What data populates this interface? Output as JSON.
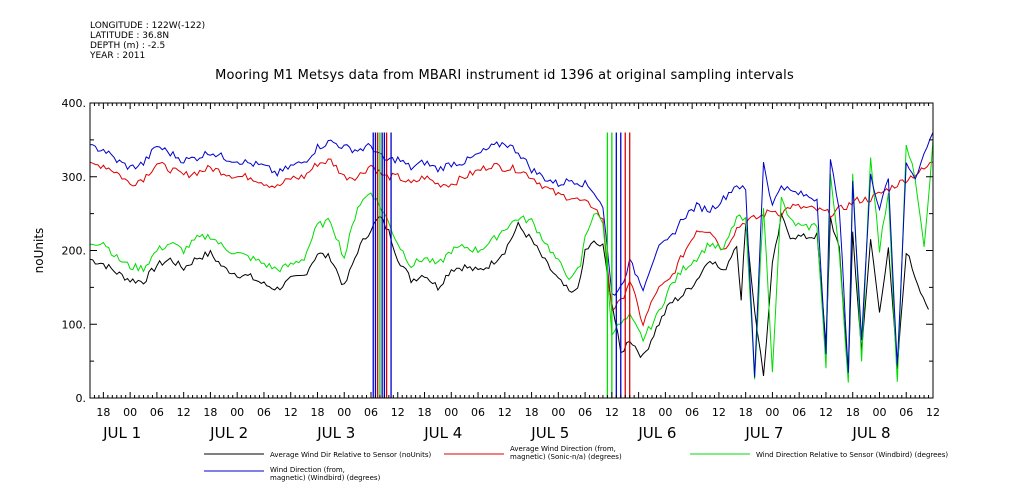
{
  "meta": {
    "longitude": "LONGITUDE : 122W(-122)",
    "latitude": "LATITUDE : 36.8N",
    "depth": "DEPTH (m) : -2.5",
    "year": "YEAR : 2011"
  },
  "chart_data": {
    "type": "line",
    "title": "Mooring M1 Metsys data from MBARI instrument id 1396 at original sampling intervals",
    "ylabel": "noUnits",
    "ylim": [
      0,
      400
    ],
    "yticks": [
      0,
      100,
      200,
      300,
      400
    ],
    "ytick_labels": [
      "0.",
      "100.",
      "200.",
      "300.",
      "400."
    ],
    "xlim_hours": [
      -9,
      180
    ],
    "hour_tick_labels": [
      "18",
      "00",
      "06",
      "12",
      "18",
      "00",
      "06",
      "12",
      "18",
      "00",
      "06",
      "12",
      "18",
      "00",
      "06",
      "12",
      "18",
      "00",
      "06",
      "12",
      "18",
      "00",
      "06",
      "12",
      "18",
      "00",
      "06",
      "12",
      "18",
      "00",
      "06",
      "12"
    ],
    "day_labels": [
      "JUL  1",
      "JUL  2",
      "JUL  3",
      "JUL  4",
      "JUL  5",
      "JUL  6",
      "JUL  7",
      "JUL  8"
    ],
    "series": [
      {
        "name": "Average Wind Dir Relative to Sensor (noUnits)",
        "color": "#000000",
        "points": [
          [
            -9,
            188
          ],
          [
            -6,
            182
          ],
          [
            -3,
            170
          ],
          [
            0,
            160
          ],
          [
            3,
            158
          ],
          [
            6,
            180
          ],
          [
            9,
            188
          ],
          [
            12,
            176
          ],
          [
            15,
            190
          ],
          [
            18,
            196
          ],
          [
            21,
            176
          ],
          [
            24,
            168
          ],
          [
            27,
            164
          ],
          [
            30,
            154
          ],
          [
            33,
            148
          ],
          [
            36,
            160
          ],
          [
            39,
            166
          ],
          [
            42,
            196
          ],
          [
            45,
            190
          ],
          [
            48,
            150
          ],
          [
            51,
            200
          ],
          [
            54,
            230
          ],
          [
            56,
            245
          ],
          [
            58,
            225
          ],
          [
            60,
            190
          ],
          [
            63,
            160
          ],
          [
            66,
            168
          ],
          [
            69,
            150
          ],
          [
            72,
            175
          ],
          [
            75,
            178
          ],
          [
            78,
            172
          ],
          [
            81,
            182
          ],
          [
            84,
            200
          ],
          [
            87,
            234
          ],
          [
            90,
            214
          ],
          [
            93,
            185
          ],
          [
            96,
            160
          ],
          [
            99,
            140
          ],
          [
            101,
            160
          ],
          [
            102,
            200
          ],
          [
            104,
            210
          ],
          [
            106,
            205
          ],
          [
            108,
            130
          ],
          [
            110,
            60
          ],
          [
            112,
            80
          ],
          [
            115,
            55
          ],
          [
            118,
            95
          ],
          [
            121,
            128
          ],
          [
            124,
            140
          ],
          [
            127,
            160
          ],
          [
            130,
            190
          ],
          [
            133,
            170
          ],
          [
            136,
            210
          ],
          [
            137,
            130
          ],
          [
            138,
            240
          ],
          [
            140,
            120
          ],
          [
            142,
            30
          ],
          [
            144,
            180
          ],
          [
            146,
            245
          ],
          [
            148,
            220
          ],
          [
            151,
            218
          ],
          [
            154,
            220
          ],
          [
            156,
            70
          ],
          [
            157,
            245
          ],
          [
            159,
            200
          ],
          [
            161,
            30
          ],
          [
            162,
            225
          ],
          [
            164,
            60
          ],
          [
            166,
            215
          ],
          [
            168,
            120
          ],
          [
            170,
            200
          ],
          [
            172,
            40
          ],
          [
            174,
            200
          ],
          [
            176,
            165
          ],
          [
            179,
            120
          ]
        ]
      },
      {
        "name": "Average Wind Direction (from, magnetic) (Sonic-n/a) (degrees)",
        "color": "#dd0000",
        "points": [
          [
            -9,
            315
          ],
          [
            -6,
            316
          ],
          [
            -3,
            306
          ],
          [
            0,
            290
          ],
          [
            3,
            298
          ],
          [
            6,
            318
          ],
          [
            9,
            310
          ],
          [
            12,
            302
          ],
          [
            15,
            306
          ],
          [
            18,
            312
          ],
          [
            21,
            306
          ],
          [
            24,
            300
          ],
          [
            27,
            300
          ],
          [
            30,
            292
          ],
          [
            33,
            286
          ],
          [
            36,
            298
          ],
          [
            39,
            300
          ],
          [
            42,
            318
          ],
          [
            45,
            322
          ],
          [
            48,
            300
          ],
          [
            51,
            300
          ],
          [
            54,
            316
          ],
          [
            57,
            300
          ],
          [
            60,
            300
          ],
          [
            63,
            290
          ],
          [
            66,
            300
          ],
          [
            69,
            290
          ],
          [
            72,
            290
          ],
          [
            75,
            300
          ],
          [
            78,
            308
          ],
          [
            81,
            316
          ],
          [
            84,
            312
          ],
          [
            87,
            310
          ],
          [
            90,
            300
          ],
          [
            93,
            286
          ],
          [
            96,
            275
          ],
          [
            99,
            272
          ],
          [
            102,
            264
          ],
          [
            104,
            260
          ],
          [
            106,
            240
          ],
          [
            108,
            120
          ],
          [
            110,
            130
          ],
          [
            112,
            160
          ],
          [
            115,
            100
          ],
          [
            118,
            145
          ],
          [
            121,
            160
          ],
          [
            124,
            195
          ],
          [
            127,
            228
          ],
          [
            130,
            228
          ],
          [
            133,
            200
          ],
          [
            136,
            230
          ],
          [
            138,
            240
          ],
          [
            141,
            245
          ],
          [
            144,
            255
          ],
          [
            146,
            250
          ],
          [
            148,
            260
          ],
          [
            151,
            258
          ],
          [
            154,
            255
          ],
          [
            157,
            250
          ],
          [
            160,
            258
          ],
          [
            163,
            268
          ],
          [
            166,
            270
          ],
          [
            169,
            280
          ],
          [
            172,
            290
          ],
          [
            175,
            300
          ],
          [
            178,
            310
          ],
          [
            180,
            320
          ]
        ]
      },
      {
        "name": "Wind Direction Relative to Sensor (Windbird) (degrees)",
        "color": "#00dd00",
        "points": [
          [
            -9,
            210
          ],
          [
            -6,
            212
          ],
          [
            -3,
            190
          ],
          [
            0,
            178
          ],
          [
            3,
            176
          ],
          [
            6,
            200
          ],
          [
            9,
            210
          ],
          [
            12,
            200
          ],
          [
            15,
            216
          ],
          [
            18,
            220
          ],
          [
            21,
            204
          ],
          [
            24,
            196
          ],
          [
            27,
            190
          ],
          [
            30,
            182
          ],
          [
            33,
            174
          ],
          [
            36,
            180
          ],
          [
            39,
            190
          ],
          [
            42,
            234
          ],
          [
            45,
            240
          ],
          [
            48,
            190
          ],
          [
            51,
            260
          ],
          [
            54,
            280
          ],
          [
            57,
            250
          ],
          [
            60,
            210
          ],
          [
            63,
            180
          ],
          [
            66,
            190
          ],
          [
            69,
            180
          ],
          [
            72,
            200
          ],
          [
            75,
            205
          ],
          [
            78,
            200
          ],
          [
            81,
            212
          ],
          [
            84,
            230
          ],
          [
            87,
            244
          ],
          [
            90,
            240
          ],
          [
            93,
            212
          ],
          [
            96,
            184
          ],
          [
            99,
            160
          ],
          [
            101,
            180
          ],
          [
            102,
            220
          ],
          [
            104,
            250
          ],
          [
            106,
            240
          ],
          [
            108,
            90
          ],
          [
            110,
            100
          ],
          [
            112,
            110
          ],
          [
            115,
            80
          ],
          [
            118,
            110
          ],
          [
            121,
            150
          ],
          [
            124,
            175
          ],
          [
            127,
            190
          ],
          [
            130,
            210
          ],
          [
            133,
            200
          ],
          [
            136,
            245
          ],
          [
            138,
            240
          ],
          [
            140,
            30
          ],
          [
            142,
            260
          ],
          [
            144,
            40
          ],
          [
            146,
            270
          ],
          [
            148,
            240
          ],
          [
            151,
            230
          ],
          [
            154,
            235
          ],
          [
            156,
            40
          ],
          [
            157,
            300
          ],
          [
            159,
            200
          ],
          [
            161,
            20
          ],
          [
            162,
            300
          ],
          [
            164,
            50
          ],
          [
            166,
            330
          ],
          [
            168,
            200
          ],
          [
            170,
            280
          ],
          [
            172,
            20
          ],
          [
            174,
            340
          ],
          [
            176,
            300
          ],
          [
            178,
            200
          ],
          [
            180,
            350
          ]
        ]
      },
      {
        "name": "Wind Direction (from, magnetic) (Windbird) (degrees)",
        "color": "#0000cc",
        "points": [
          [
            -9,
            340
          ],
          [
            -6,
            337
          ],
          [
            -3,
            322
          ],
          [
            0,
            312
          ],
          [
            3,
            318
          ],
          [
            6,
            342
          ],
          [
            9,
            332
          ],
          [
            12,
            322
          ],
          [
            15,
            326
          ],
          [
            18,
            334
          ],
          [
            21,
            326
          ],
          [
            24,
            322
          ],
          [
            27,
            318
          ],
          [
            30,
            314
          ],
          [
            33,
            304
          ],
          [
            36,
            314
          ],
          [
            39,
            320
          ],
          [
            42,
            340
          ],
          [
            45,
            348
          ],
          [
            48,
            340
          ],
          [
            51,
            336
          ],
          [
            54,
            342
          ],
          [
            57,
            322
          ],
          [
            60,
            324
          ],
          [
            63,
            312
          ],
          [
            66,
            320
          ],
          [
            69,
            310
          ],
          [
            72,
            318
          ],
          [
            75,
            320
          ],
          [
            78,
            330
          ],
          [
            81,
            340
          ],
          [
            84,
            346
          ],
          [
            87,
            334
          ],
          [
            90,
            310
          ],
          [
            93,
            298
          ],
          [
            96,
            290
          ],
          [
            99,
            296
          ],
          [
            102,
            290
          ],
          [
            104,
            280
          ],
          [
            106,
            260
          ],
          [
            108,
            140
          ],
          [
            110,
            150
          ],
          [
            112,
            185
          ],
          [
            115,
            150
          ],
          [
            118,
            200
          ],
          [
            121,
            215
          ],
          [
            124,
            245
          ],
          [
            127,
            260
          ],
          [
            130,
            255
          ],
          [
            133,
            270
          ],
          [
            136,
            290
          ],
          [
            138,
            280
          ],
          [
            140,
            30
          ],
          [
            142,
            320
          ],
          [
            144,
            260
          ],
          [
            146,
            290
          ],
          [
            148,
            280
          ],
          [
            151,
            275
          ],
          [
            154,
            270
          ],
          [
            156,
            60
          ],
          [
            157,
            320
          ],
          [
            159,
            260
          ],
          [
            161,
            30
          ],
          [
            162,
            290
          ],
          [
            164,
            80
          ],
          [
            166,
            300
          ],
          [
            168,
            260
          ],
          [
            170,
            300
          ],
          [
            172,
            40
          ],
          [
            174,
            320
          ],
          [
            176,
            300
          ],
          [
            178,
            330
          ],
          [
            180,
            360
          ]
        ]
      }
    ],
    "spike_lines": [
      {
        "color": "#0000cc",
        "x": [
          54.5,
          55,
          56.5,
          57,
          58.5
        ]
      },
      {
        "color": "#dd0000",
        "x": [
          55.5,
          57.5
        ]
      },
      {
        "color": "#00dd00",
        "x": [
          56
        ]
      },
      {
        "color": "#0000cc",
        "x": [
          109,
          110
        ]
      },
      {
        "color": "#dd0000",
        "x": [
          111,
          112
        ]
      },
      {
        "color": "#00dd00",
        "x": [
          107,
          108
        ]
      }
    ],
    "legend": [
      {
        "label": "Average Wind Dir Relative to Sensor (noUnits)",
        "color": "#000000"
      },
      {
        "label": "Average Wind Direction (from,\n magnetic) (Sonic-n/a) (degrees)",
        "color": "#dd0000"
      },
      {
        "label": "Wind Direction Relative to Sensor (Windbird) (degrees)",
        "color": "#00dd00"
      },
      {
        "label": "Wind Direction (from,\n magnetic) (Windbird) (degrees)",
        "color": "#0000cc"
      }
    ]
  }
}
